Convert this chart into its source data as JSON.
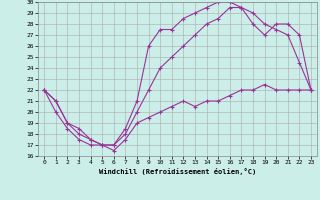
{
  "xlabel": "Windchill (Refroidissement éolien,°C)",
  "background_color": "#cceee8",
  "grid_color": "#aaaaaa",
  "line_color": "#993399",
  "xlim": [
    -0.5,
    23.5
  ],
  "ylim": [
    16,
    30
  ],
  "xticks": [
    0,
    1,
    2,
    3,
    4,
    5,
    6,
    7,
    8,
    9,
    10,
    11,
    12,
    13,
    14,
    15,
    16,
    17,
    18,
    19,
    20,
    21,
    22,
    23
  ],
  "yticks": [
    16,
    17,
    18,
    19,
    20,
    21,
    22,
    23,
    24,
    25,
    26,
    27,
    28,
    29,
    30
  ],
  "line1_x": [
    0,
    1,
    2,
    3,
    4,
    5,
    6,
    7,
    8,
    9,
    10,
    11,
    12,
    13,
    14,
    15,
    16,
    17,
    18,
    19,
    20,
    21,
    22,
    23
  ],
  "line1_y": [
    22,
    20,
    18.5,
    17.5,
    17,
    17,
    16.5,
    17.5,
    19,
    19.5,
    20,
    20.5,
    21,
    20.5,
    21,
    21,
    21.5,
    22,
    22,
    22.5,
    22,
    22,
    22,
    22
  ],
  "line2_x": [
    0,
    1,
    2,
    3,
    4,
    5,
    6,
    7,
    8,
    9,
    10,
    11,
    12,
    13,
    14,
    15,
    16,
    17,
    18,
    19,
    20,
    21,
    22,
    23
  ],
  "line2_y": [
    22,
    21,
    19,
    18,
    17.5,
    17,
    17,
    18,
    20,
    22,
    24,
    25,
    26,
    27,
    28,
    28.5,
    29.5,
    29.5,
    29,
    28,
    27.5,
    27,
    24.5,
    22
  ],
  "line3_x": [
    0,
    1,
    2,
    3,
    4,
    5,
    6,
    7,
    8,
    9,
    10,
    11,
    12,
    13,
    14,
    15,
    16,
    17,
    18,
    19,
    20,
    21,
    22,
    23
  ],
  "line3_y": [
    22,
    21,
    19,
    18.5,
    17.5,
    17,
    17,
    18.5,
    21,
    26,
    27.5,
    27.5,
    28.5,
    29,
    29.5,
    30,
    30,
    29.5,
    28,
    27,
    28,
    28,
    27,
    22
  ]
}
